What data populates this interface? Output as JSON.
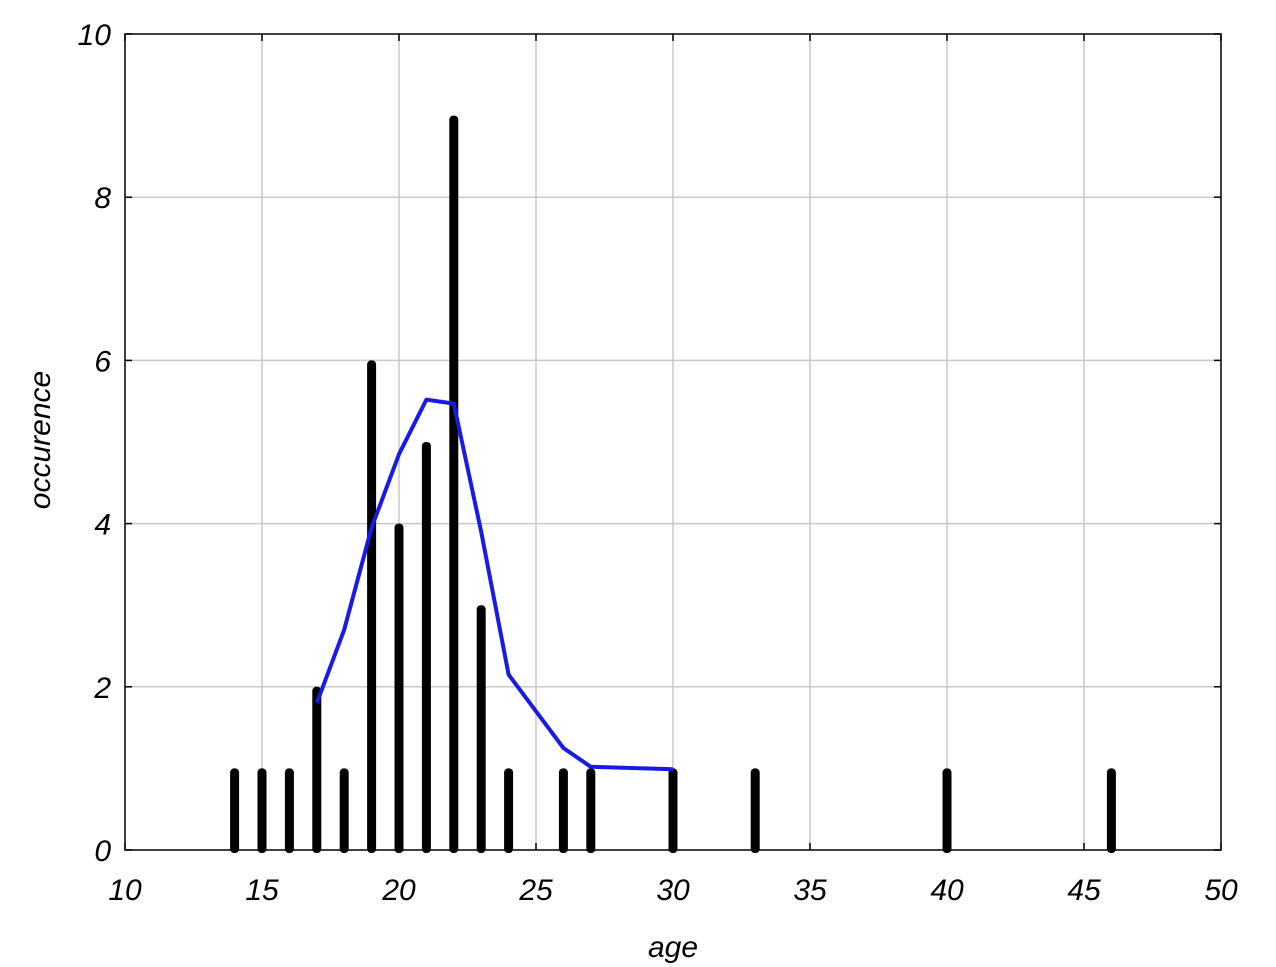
{
  "chart_data": {
    "type": "bar",
    "xlabel": "age",
    "ylabel": "occurence",
    "xlim": [
      10,
      50
    ],
    "ylim": [
      0,
      10
    ],
    "x_ticks": [
      10,
      15,
      20,
      25,
      30,
      35,
      40,
      45,
      50
    ],
    "y_ticks": [
      0,
      2,
      4,
      6,
      8,
      10
    ],
    "grid": true,
    "series": [
      {
        "type": "bar",
        "x": [
          14,
          15,
          16,
          17,
          18,
          19,
          20,
          21,
          22,
          23,
          24,
          26,
          27,
          30,
          33,
          40,
          46
        ],
        "values": [
          1,
          1,
          1,
          2,
          1,
          6,
          4,
          5,
          9,
          3,
          1,
          1,
          1,
          1,
          1,
          1,
          1
        ],
        "color": "#000000"
      },
      {
        "type": "line",
        "x": [
          17,
          18,
          19,
          20,
          21,
          22,
          23,
          24,
          25,
          26,
          27,
          28,
          29,
          30
        ],
        "values": [
          1.8,
          2.7,
          3.95,
          4.85,
          5.52,
          5.47,
          3.9,
          2.15,
          1.7,
          1.25,
          1.02,
          1.01,
          1.0,
          0.99
        ],
        "color": "#1a1ae6"
      }
    ]
  }
}
